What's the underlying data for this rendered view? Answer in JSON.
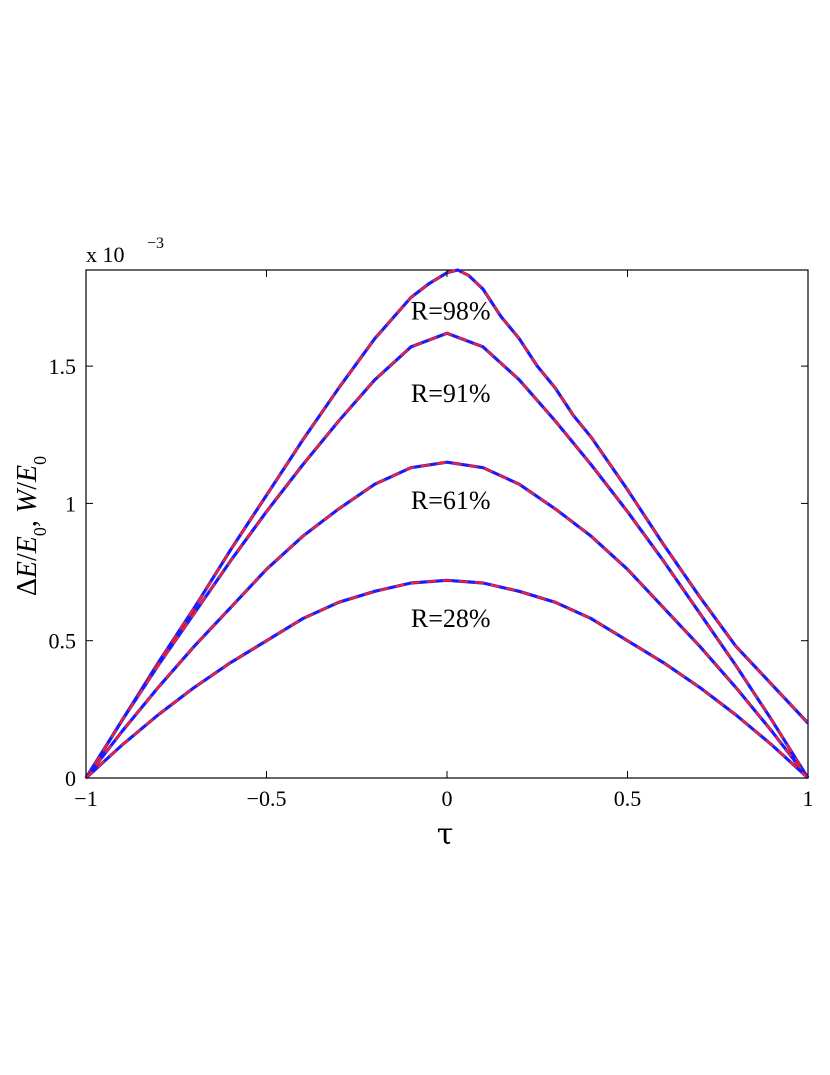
{
  "chart_data": {
    "type": "line",
    "title": "",
    "xlabel": "τ",
    "ylabel": "ΔE/E0, W/E0",
    "ylabel_parts": {
      "delta": "Δ",
      "E": "E",
      "slash": "/",
      "E0": "E",
      "zero": "0",
      "comma": ", ",
      "W": "W"
    },
    "y_exponent": "x 10",
    "y_exponent_power": "−3",
    "xlim": [
      -1,
      1
    ],
    "ylim": [
      0,
      1.85
    ],
    "xticks": [
      -1,
      -0.5,
      0,
      0.5,
      1
    ],
    "xtick_labels": [
      "−1",
      "−0.5",
      "0",
      "0.5",
      "1"
    ],
    "yticks": [
      0,
      0.5,
      1,
      1.5
    ],
    "ytick_labels": [
      "0",
      "0.5",
      "1",
      "1.5"
    ],
    "grid": false,
    "line_styles": {
      "solid_color": "#1a1aff",
      "dashed_color": "#ff2020"
    },
    "series": [
      {
        "label": "R=98%",
        "label_at": [
          -0.1,
          1.67
        ],
        "x": [
          -1,
          -0.9,
          -0.8,
          -0.7,
          -0.6,
          -0.5,
          -0.4,
          -0.3,
          -0.2,
          -0.1,
          -0.05,
          0,
          0.03,
          0.06,
          0.1,
          0.15,
          0.2,
          0.25,
          0.3,
          0.35,
          0.4,
          0.5,
          0.6,
          0.7,
          0.8,
          0.9,
          1
        ],
        "y": [
          0,
          0.21,
          0.42,
          0.62,
          0.83,
          1.03,
          1.23,
          1.42,
          1.6,
          1.75,
          1.8,
          1.84,
          1.85,
          1.83,
          1.78,
          1.68,
          1.6,
          1.5,
          1.42,
          1.32,
          1.24,
          1.05,
          0.85,
          0.66,
          0.48,
          0.34,
          0.2
        ]
      },
      {
        "label": "R=91%",
        "label_at": [
          -0.1,
          1.37
        ],
        "x": [
          -1,
          -0.9,
          -0.8,
          -0.7,
          -0.6,
          -0.5,
          -0.4,
          -0.3,
          -0.2,
          -0.1,
          0,
          0.1,
          0.2,
          0.3,
          0.4,
          0.5,
          0.6,
          0.7,
          0.8,
          0.9,
          1
        ],
        "y": [
          0,
          0.21,
          0.41,
          0.6,
          0.79,
          0.97,
          1.14,
          1.3,
          1.45,
          1.57,
          1.62,
          1.57,
          1.45,
          1.3,
          1.14,
          0.97,
          0.79,
          0.6,
          0.41,
          0.21,
          0
        ]
      },
      {
        "label": "R=61%",
        "label_at": [
          -0.1,
          0.98
        ],
        "x": [
          -1,
          -0.9,
          -0.8,
          -0.7,
          -0.6,
          -0.5,
          -0.4,
          -0.3,
          -0.2,
          -0.1,
          0,
          0.1,
          0.2,
          0.3,
          0.4,
          0.5,
          0.6,
          0.7,
          0.8,
          0.9,
          1
        ],
        "y": [
          0,
          0.17,
          0.33,
          0.48,
          0.62,
          0.76,
          0.88,
          0.98,
          1.07,
          1.13,
          1.15,
          1.13,
          1.07,
          0.98,
          0.88,
          0.76,
          0.62,
          0.48,
          0.33,
          0.17,
          0
        ]
      },
      {
        "label": "R=28%",
        "label_at": [
          -0.1,
          0.55
        ],
        "x": [
          -1,
          -0.9,
          -0.8,
          -0.7,
          -0.6,
          -0.5,
          -0.4,
          -0.3,
          -0.2,
          -0.1,
          0,
          0.1,
          0.2,
          0.3,
          0.4,
          0.5,
          0.6,
          0.7,
          0.8,
          0.9,
          1
        ],
        "y": [
          0,
          0.12,
          0.23,
          0.33,
          0.42,
          0.5,
          0.58,
          0.64,
          0.68,
          0.71,
          0.72,
          0.71,
          0.68,
          0.64,
          0.58,
          0.5,
          0.42,
          0.33,
          0.23,
          0.12,
          0
        ]
      }
    ]
  }
}
